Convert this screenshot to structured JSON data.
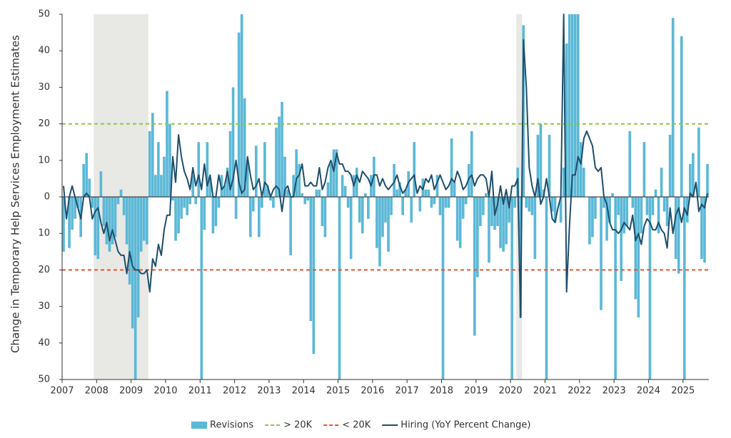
{
  "chart_data": {
    "type": "bar-line",
    "y_label": "Change in Temporary Help Services Employment Estimates",
    "categories": [
      "2007",
      null,
      null,
      null,
      null,
      null,
      null,
      null,
      null,
      null,
      null,
      null,
      "2008",
      null,
      null,
      null,
      null,
      null,
      null,
      null,
      null,
      null,
      null,
      null,
      "2009",
      null,
      null,
      null,
      null,
      null,
      null,
      null,
      null,
      null,
      null,
      null,
      "2010",
      null,
      null,
      null,
      null,
      null,
      null,
      null,
      null,
      null,
      null,
      null,
      "2011",
      null,
      null,
      null,
      null,
      null,
      null,
      null,
      null,
      null,
      null,
      null,
      "2012",
      null,
      null,
      null,
      null,
      null,
      null,
      null,
      null,
      null,
      null,
      null,
      "2013",
      null,
      null,
      null,
      null,
      null,
      null,
      null,
      null,
      null,
      null,
      null,
      "2014",
      null,
      null,
      null,
      null,
      null,
      null,
      null,
      null,
      null,
      null,
      null,
      "2015",
      null,
      null,
      null,
      null,
      null,
      null,
      null,
      null,
      null,
      null,
      null,
      "2016",
      null,
      null,
      null,
      null,
      null,
      null,
      null,
      null,
      null,
      null,
      null,
      "2017",
      null,
      null,
      null,
      null,
      null,
      null,
      null,
      null,
      null,
      null,
      null,
      "2018",
      null,
      null,
      null,
      null,
      null,
      null,
      null,
      null,
      null,
      null,
      null,
      "2019",
      null,
      null,
      null,
      null,
      null,
      null,
      null,
      null,
      null,
      null,
      null,
      "2020",
      null,
      null,
      null,
      null,
      null,
      null,
      null,
      null,
      null,
      null,
      null,
      "2021",
      null,
      null,
      null,
      null,
      null,
      null,
      null,
      null,
      null,
      null,
      null,
      "2022",
      null,
      null,
      null,
      null,
      null,
      null,
      null,
      null,
      null,
      null,
      null,
      "2023",
      null,
      null,
      null,
      null,
      null,
      null,
      null,
      null,
      null,
      null,
      null,
      "2024",
      null,
      null,
      null,
      null,
      null,
      null,
      null,
      null,
      null,
      null,
      null,
      "2025",
      null,
      null,
      null,
      null,
      null,
      null,
      null,
      null
    ],
    "series": [
      {
        "name": "Revisions",
        "kind": "bar",
        "color": "#5bb8d6",
        "values": [
          -15,
          0,
          -14,
          -9,
          -6,
          -3,
          -11,
          9,
          12,
          5,
          -3,
          -16,
          -17,
          7,
          -8,
          -13,
          -15,
          -13,
          -11,
          -2,
          2,
          -5,
          -13,
          -24,
          -36,
          -50,
          -33,
          -15,
          -12,
          -13,
          18,
          23,
          6,
          15,
          6,
          11,
          29,
          20,
          -1,
          -12,
          -10,
          -6,
          -3,
          -5,
          -2,
          6,
          -2,
          15,
          -50,
          -9,
          15,
          5,
          -10,
          -8,
          -3,
          6,
          3,
          8,
          18,
          30,
          -6,
          45,
          50,
          27,
          10,
          -11,
          -4,
          14,
          -11,
          -3,
          15,
          3,
          -1,
          -3,
          19,
          22,
          26,
          11,
          2,
          -16,
          6,
          13,
          9,
          1,
          -2,
          -1,
          -34,
          -43,
          2,
          2,
          -8,
          -11,
          4,
          9,
          13,
          13,
          -50,
          6,
          3,
          -3,
          -17,
          6,
          8,
          -7,
          -10,
          1,
          -6,
          6,
          11,
          -14,
          -19,
          -11,
          -7,
          -15,
          -5,
          9,
          2,
          4,
          -5,
          2,
          7,
          -7,
          15,
          0,
          -4,
          5,
          2,
          2,
          -3,
          -2,
          6,
          -5,
          -50,
          -3,
          -3,
          16,
          4,
          -12,
          -14,
          -6,
          -2,
          9,
          18,
          -38,
          -22,
          -8,
          -5,
          1,
          -18,
          -8,
          -9,
          -8,
          -14,
          -15,
          -13,
          -7,
          -50,
          -3,
          8,
          -33,
          47,
          -3,
          -4,
          -5,
          -17,
          17,
          20,
          2,
          -50,
          17,
          -4,
          -7,
          0,
          -7,
          8,
          42,
          50,
          50,
          50,
          50,
          15,
          8,
          0,
          -13,
          -11,
          -6,
          0,
          -31,
          -3,
          -12,
          -7,
          1,
          -50,
          -5,
          -23,
          -10,
          -8,
          18,
          -3,
          -28,
          -33,
          -10,
          15,
          -5,
          -50,
          -5,
          2,
          -10,
          8,
          -4,
          -8,
          17,
          49,
          -17,
          -21,
          44,
          -50,
          -7,
          9,
          12,
          0,
          19,
          -17,
          -18,
          9
        ]
      },
      {
        "name": "Hiring (YoY Percent Change)",
        "kind": "line",
        "color": "#1f4e6b",
        "values": [
          3,
          -6,
          0,
          3,
          0,
          -3,
          -6,
          0,
          1,
          0,
          -6,
          -4,
          -3,
          -7,
          -10,
          -7,
          -12,
          -9,
          -12,
          -15,
          -16,
          -16,
          -21,
          -15,
          -19,
          -20,
          -20,
          -21,
          -21,
          -20,
          -26,
          -17,
          -19,
          -13,
          -16,
          -9,
          -5,
          -5,
          11,
          4,
          17,
          11,
          7,
          5,
          2,
          8,
          3,
          6,
          2,
          9,
          3,
          6,
          0,
          0,
          6,
          2,
          3,
          7,
          2,
          5,
          10,
          4,
          1,
          2,
          11,
          6,
          2,
          3,
          5,
          0,
          4,
          3,
          0,
          2,
          3,
          2,
          -4,
          2,
          3,
          0,
          0,
          5,
          6,
          9,
          3,
          3,
          4,
          3,
          3,
          8,
          2,
          4,
          8,
          10,
          7,
          12,
          9,
          9,
          7,
          7,
          6,
          3,
          6,
          4,
          7,
          6,
          5,
          3,
          6,
          6,
          3,
          5,
          3,
          2,
          3,
          4,
          6,
          3,
          1,
          2,
          4,
          5,
          6,
          1,
          3,
          2,
          5,
          4,
          6,
          2,
          4,
          6,
          4,
          2,
          3,
          5,
          4,
          7,
          5,
          2,
          3,
          5,
          6,
          3,
          5,
          6,
          6,
          5,
          0,
          7,
          -5,
          -2,
          3,
          -2,
          2,
          -3,
          3,
          3,
          5,
          -33,
          43,
          30,
          8,
          3,
          0,
          5,
          -2,
          0,
          5,
          0,
          -6,
          -7,
          -3,
          0,
          50,
          -26,
          -8,
          6,
          6,
          11,
          9,
          16,
          18,
          16,
          14,
          8,
          7,
          8,
          0,
          -2,
          -7,
          -9,
          -9,
          -10,
          -9,
          -7,
          -8,
          -9,
          -5,
          -12,
          -10,
          -13,
          -8,
          -6,
          -7,
          -9,
          -9,
          -7,
          -9,
          -10,
          -14,
          -3,
          -10,
          -5,
          -3,
          -7,
          -3,
          -5,
          1,
          0,
          4,
          -4,
          -2,
          -3,
          1
        ]
      }
    ],
    "reference_lines": [
      {
        "name": "> 20K",
        "value": 20,
        "color": "#8dc63f"
      },
      {
        "name": "< 20K",
        "value": -20,
        "color": "#e8562a"
      }
    ],
    "recession_spans": [
      [
        11,
        29
      ],
      [
        158,
        159
      ]
    ],
    "ylim": [
      -50,
      50
    ],
    "yticks": [
      {
        "value": -50,
        "label": "50"
      },
      {
        "value": -40,
        "label": "40"
      },
      {
        "value": -30,
        "label": "30"
      },
      {
        "value": -20,
        "label": "20"
      },
      {
        "value": -10,
        "label": "10"
      },
      0,
      10,
      20,
      30,
      40,
      50
    ]
  }
}
